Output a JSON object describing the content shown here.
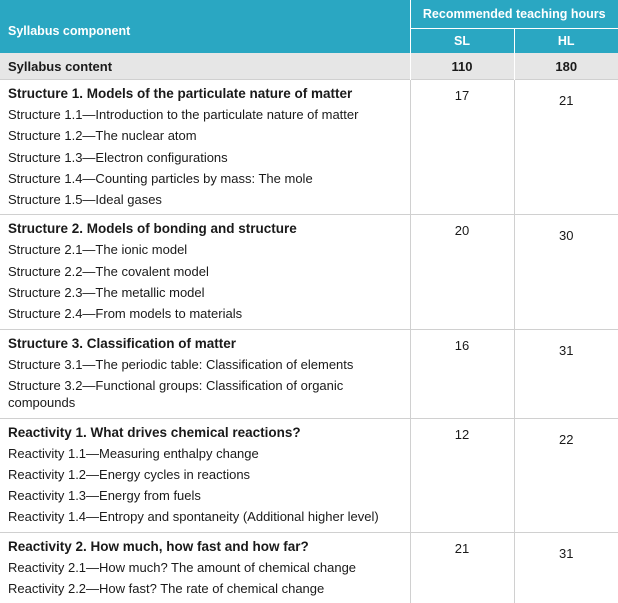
{
  "header": {
    "col_component": "Syllabus component",
    "col_hours": "Recommended teaching hours",
    "col_sl": "SL",
    "col_hl": "HL"
  },
  "syllabus_content": {
    "label": "Syllabus content",
    "sl": "110",
    "hl": "180"
  },
  "sections": [
    {
      "title": "Structure 1. Models of the particulate nature of matter",
      "sl": "17",
      "hl": "21",
      "items": [
        "Structure 1.1—Introduction to the particulate nature of matter",
        "Structure 1.2—The nuclear atom",
        "Structure 1.3—Electron configurations",
        "Structure 1.4—Counting particles by mass: The mole",
        "Structure 1.5—Ideal gases"
      ]
    },
    {
      "title": "Structure 2. Models of bonding and structure",
      "sl": "20",
      "hl": "30",
      "items": [
        "Structure 2.1—The ionic model",
        "Structure 2.2—The covalent model",
        "Structure 2.3—The metallic model",
        "Structure 2.4—From models to materials"
      ]
    },
    {
      "title": "Structure 3. Classification of matter",
      "sl": "16",
      "hl": "31",
      "items": [
        "Structure 3.1—The periodic table: Classification of elements",
        "Structure 3.2—Functional groups: Classification of organic compounds"
      ]
    },
    {
      "title": "Reactivity 1. What drives chemical reactions?",
      "sl": "12",
      "hl": "22",
      "items": [
        "Reactivity 1.1—Measuring enthalpy change",
        "Reactivity 1.2—Energy cycles in reactions",
        "Reactivity 1.3—Energy from fuels",
        "Reactivity 1.4—Entropy and spontaneity (Additional higher level)"
      ]
    },
    {
      "title": "Reactivity 2. How much, how fast and how far?",
      "sl": "21",
      "hl": "31",
      "items": [
        "Reactivity 2.1—How much? The amount of chemical change",
        "Reactivity 2.2—How fast? The rate of chemical change"
      ]
    }
  ]
}
